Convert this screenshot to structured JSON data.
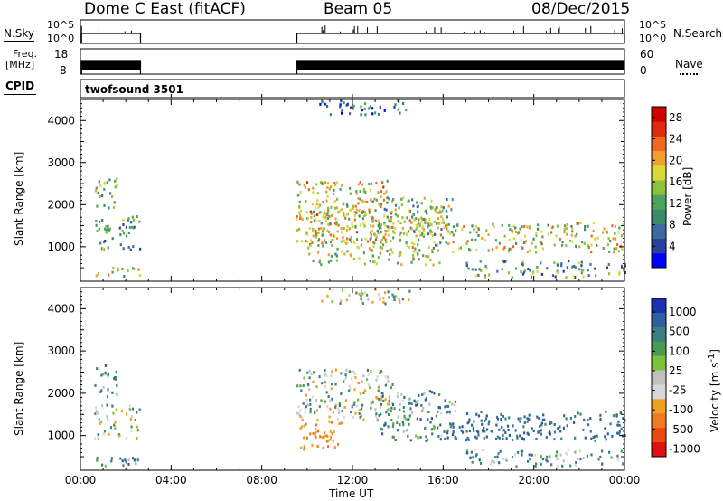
{
  "header": {
    "station": "Dome C East (fitACF)",
    "beam": "Beam 05",
    "date": "08/Dec/2015"
  },
  "mini_panels": {
    "nsky": {
      "left_label": "N.Sky",
      "left_ticks": [
        "10^5",
        "10^0"
      ],
      "right_label": "N.Search",
      "right_ticks": [
        "10^5",
        "10^0"
      ]
    },
    "freq": {
      "left_label_1": "Freq.",
      "left_label_2": "[MHz]",
      "left_ticks": [
        "18",
        "8"
      ],
      "right_label": "Nave",
      "right_ticks": [
        "60",
        "0"
      ]
    },
    "cpid": {
      "label": "CPID",
      "value": "twofsound 3501"
    }
  },
  "colors": {
    "power_scale": [
      "#0000ff",
      "#2a3f9e",
      "#3d6aa0",
      "#3c8a6a",
      "#4ca55a",
      "#8cc23a",
      "#d8d836",
      "#f0a030",
      "#ef6a20",
      "#e02a10",
      "#d00000"
    ],
    "velocity_scale": [
      "#1c2fb0",
      "#2f5fa0",
      "#3b7f80",
      "#4c9a50",
      "#7ac43c",
      "#c0c0c0",
      "#d8d8d8",
      "#f0a020",
      "#f07a20",
      "#e84a10",
      "#e01010"
    ],
    "mini_trace": "#000000"
  },
  "chart_data": [
    {
      "type": "heatmap",
      "title": "",
      "xlabel": "",
      "ylabel": "Slant Range [km]",
      "xlim": [
        "00:00",
        "00:00"
      ],
      "ylim": [
        180,
        4500
      ],
      "x_ticks": [
        "00:00",
        "04:00",
        "08:00",
        "12:00",
        "16:00",
        "20:00",
        "00:00"
      ],
      "y_ticks": [
        1000,
        2000,
        3000,
        4000
      ],
      "colorbar": {
        "label": "Power [dB]",
        "ticks": [
          4,
          8,
          12,
          16,
          20,
          24,
          28
        ],
        "range": [
          0,
          30
        ]
      },
      "regions": [
        {
          "t0": 0.6,
          "t1": 2.6,
          "r0": 300,
          "r1": 550,
          "value": 17
        },
        {
          "t0": 0.6,
          "t1": 2.6,
          "r0": 950,
          "r1": 1750,
          "value": 10
        },
        {
          "t0": 0.6,
          "t1": 1.6,
          "r0": 1950,
          "r1": 2700,
          "value": 13
        },
        {
          "t0": 9.5,
          "t1": 13.5,
          "r0": 1100,
          "r1": 2600,
          "value": 18
        },
        {
          "t0": 10.0,
          "t1": 16.0,
          "r0": 600,
          "r1": 2000,
          "value": 16
        },
        {
          "t0": 13.0,
          "t1": 16.5,
          "r0": 1300,
          "r1": 2200,
          "value": 13
        },
        {
          "t0": 16.0,
          "t1": 24.0,
          "r0": 900,
          "r1": 1600,
          "value": 17
        },
        {
          "t0": 17.0,
          "t1": 24.0,
          "r0": 300,
          "r1": 700,
          "value": 10
        },
        {
          "t0": 10.5,
          "t1": 14.5,
          "r0": 4150,
          "r1": 4500,
          "value": 6
        }
      ]
    },
    {
      "type": "heatmap",
      "title": "",
      "xlabel": "Time UT",
      "ylabel": "Slant Range [km]",
      "xlim": [
        "00:00",
        "00:00"
      ],
      "ylim": [
        180,
        4500
      ],
      "x_ticks": [
        "00:00",
        "04:00",
        "08:00",
        "12:00",
        "16:00",
        "20:00",
        "00:00"
      ],
      "y_ticks": [
        1000,
        2000,
        3000,
        4000
      ],
      "colorbar": {
        "label": "Velocity [m s^-1]",
        "ticks": [
          "1000",
          "500",
          "100",
          "25",
          "-25",
          "-100",
          "-500",
          "-1000"
        ]
      },
      "regions": [
        {
          "t0": 0.6,
          "t1": 2.6,
          "r0": 300,
          "r1": 550,
          "value": 150
        },
        {
          "t0": 0.6,
          "t1": 2.6,
          "r0": 950,
          "r1": 1750,
          "value": 0
        },
        {
          "t0": 0.6,
          "t1": 1.6,
          "r0": 1950,
          "r1": 2700,
          "value": 200
        },
        {
          "t0": 9.5,
          "t1": 11.5,
          "r0": 700,
          "r1": 1400,
          "value": -300
        },
        {
          "t0": 9.5,
          "t1": 14.0,
          "r0": 1400,
          "r1": 2600,
          "value": 0
        },
        {
          "t0": 13.0,
          "t1": 16.5,
          "r0": 900,
          "r1": 2100,
          "value": 150
        },
        {
          "t0": 16.0,
          "t1": 24.0,
          "r0": 900,
          "r1": 1600,
          "value": 300
        },
        {
          "t0": 17.0,
          "t1": 24.0,
          "r0": 300,
          "r1": 700,
          "value": 120
        },
        {
          "t0": 10.5,
          "t1": 14.5,
          "r0": 4150,
          "r1": 4500,
          "value": 0
        }
      ]
    }
  ]
}
